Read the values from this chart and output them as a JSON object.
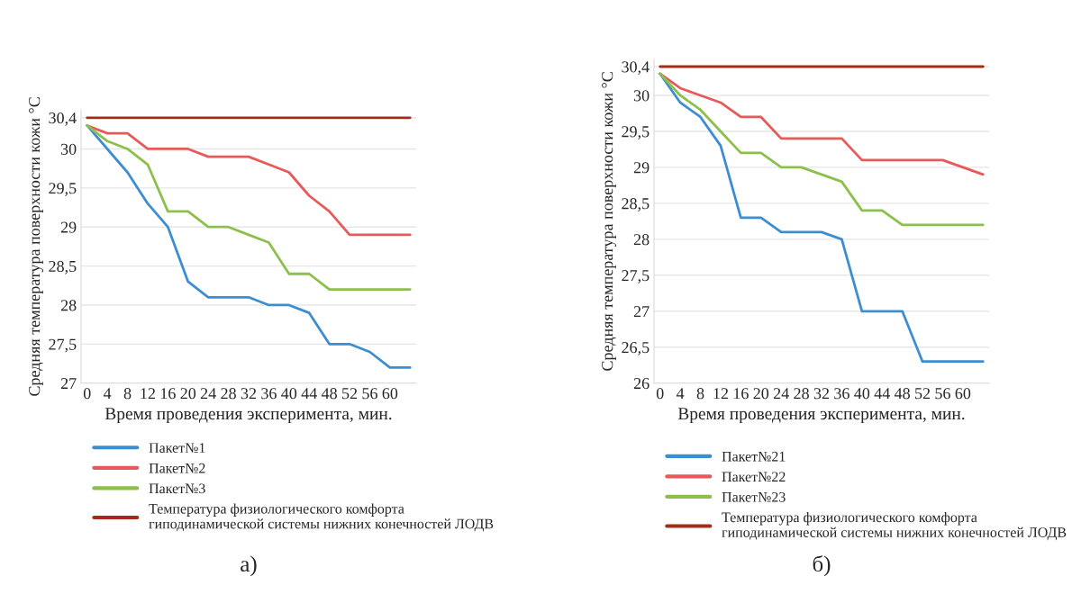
{
  "chart_data": [
    {
      "type": "line",
      "xlabel": "Время проведения эксперимента, мин.",
      "ylabel": "Средняя температура поверхности кожи °C",
      "categories": [
        "0",
        "4",
        "8",
        "12",
        "16",
        "20",
        "24",
        "28",
        "32",
        "36",
        "40",
        "44",
        "48",
        "52",
        "56",
        "60",
        null
      ],
      "series": [
        {
          "name": "Пакет№1",
          "color": "#3c8dd1",
          "values": [
            30.3,
            30.0,
            29.7,
            29.3,
            29.0,
            28.3,
            28.1,
            28.1,
            28.1,
            28.0,
            28.0,
            27.9,
            27.5,
            27.5,
            27.4,
            27.2,
            27.2
          ]
        },
        {
          "name": "Пакет№2",
          "color": "#e85a5a",
          "values": [
            30.3,
            30.2,
            30.2,
            30.0,
            30.0,
            30.0,
            29.9,
            29.9,
            29.9,
            29.8,
            29.7,
            29.4,
            29.2,
            28.9,
            28.9,
            28.9,
            28.9
          ]
        },
        {
          "name": "Пакет№3",
          "color": "#8cc04a",
          "values": [
            30.3,
            30.1,
            30.0,
            29.8,
            29.2,
            29.2,
            29.0,
            29.0,
            28.9,
            28.8,
            28.4,
            28.4,
            28.2,
            28.2,
            28.2,
            28.2,
            28.2
          ]
        },
        {
          "name": "Температура физиологического комфорта\nгиподинамической системы нижних конечностей ЛОДВ",
          "color": "#a52a1a",
          "values": [
            30.4,
            30.4,
            30.4,
            30.4,
            30.4,
            30.4,
            30.4,
            30.4,
            30.4,
            30.4,
            30.4,
            30.4,
            30.4,
            30.4,
            30.4,
            30.4,
            30.4
          ]
        }
      ],
      "ylim": [
        27,
        30.5
      ],
      "yticks": [
        27,
        {
          "value": 27.5,
          "label": "27,5"
        },
        28,
        {
          "value": 28.5,
          "label": "28,5"
        },
        29,
        {
          "value": 29.5,
          "label": "29,5"
        },
        30,
        {
          "value": 30.4,
          "label": "30,4"
        }
      ],
      "grid": "y",
      "legend": "bottom",
      "line_style": "solid",
      "marker": "none",
      "annotations": [
        "а)"
      ]
    },
    {
      "type": "line",
      "xlabel": "Время проведения эксперимента, мин.",
      "ylabel": "Средняя температура поверхности кожи °C",
      "categories": [
        "0",
        "4",
        "8",
        "12",
        "16",
        "20",
        "24",
        "28",
        "32",
        "36",
        "40",
        "44",
        "48",
        "52",
        "56",
        "60",
        null
      ],
      "series": [
        {
          "name": "Пакет№21",
          "color": "#3c8dd1",
          "values": [
            30.3,
            29.9,
            29.7,
            29.3,
            28.3,
            28.3,
            28.1,
            28.1,
            28.1,
            28.0,
            27.0,
            27.0,
            27.0,
            26.3,
            26.3,
            26.3,
            26.3
          ]
        },
        {
          "name": "Пакет№22",
          "color": "#e85a5a",
          "values": [
            30.3,
            30.1,
            30.0,
            29.9,
            29.7,
            29.7,
            29.4,
            29.4,
            29.4,
            29.4,
            29.1,
            29.1,
            29.1,
            29.1,
            29.1,
            29.0,
            28.9
          ]
        },
        {
          "name": "Пакет№23",
          "color": "#8cc04a",
          "values": [
            30.3,
            30.0,
            29.8,
            29.5,
            29.2,
            29.2,
            29.0,
            29.0,
            28.9,
            28.8,
            28.4,
            28.4,
            28.2,
            28.2,
            28.2,
            28.2,
            28.2
          ]
        },
        {
          "name": "Температура физиологического комфорта\nгиподинамической системы нижних конечностей ЛОДВ",
          "color": "#a52a1a",
          "values": [
            30.4,
            30.4,
            30.4,
            30.4,
            30.4,
            30.4,
            30.4,
            30.4,
            30.4,
            30.4,
            30.4,
            30.4,
            30.4,
            30.4,
            30.4,
            30.4,
            30.4
          ]
        }
      ],
      "ylim": [
        26,
        30.5
      ],
      "yticks": [
        26,
        {
          "value": 26.5,
          "label": "26,5"
        },
        27,
        {
          "value": 27.5,
          "label": "27,5"
        },
        28,
        {
          "value": 28.5,
          "label": "28,5"
        },
        29,
        {
          "value": 29.5,
          "label": "29,5"
        },
        30,
        {
          "value": 30.4,
          "label": "30,4"
        }
      ],
      "grid": "y",
      "legend": "bottom",
      "line_style": "solid",
      "marker": "none",
      "annotations": [
        "б)"
      ]
    }
  ]
}
